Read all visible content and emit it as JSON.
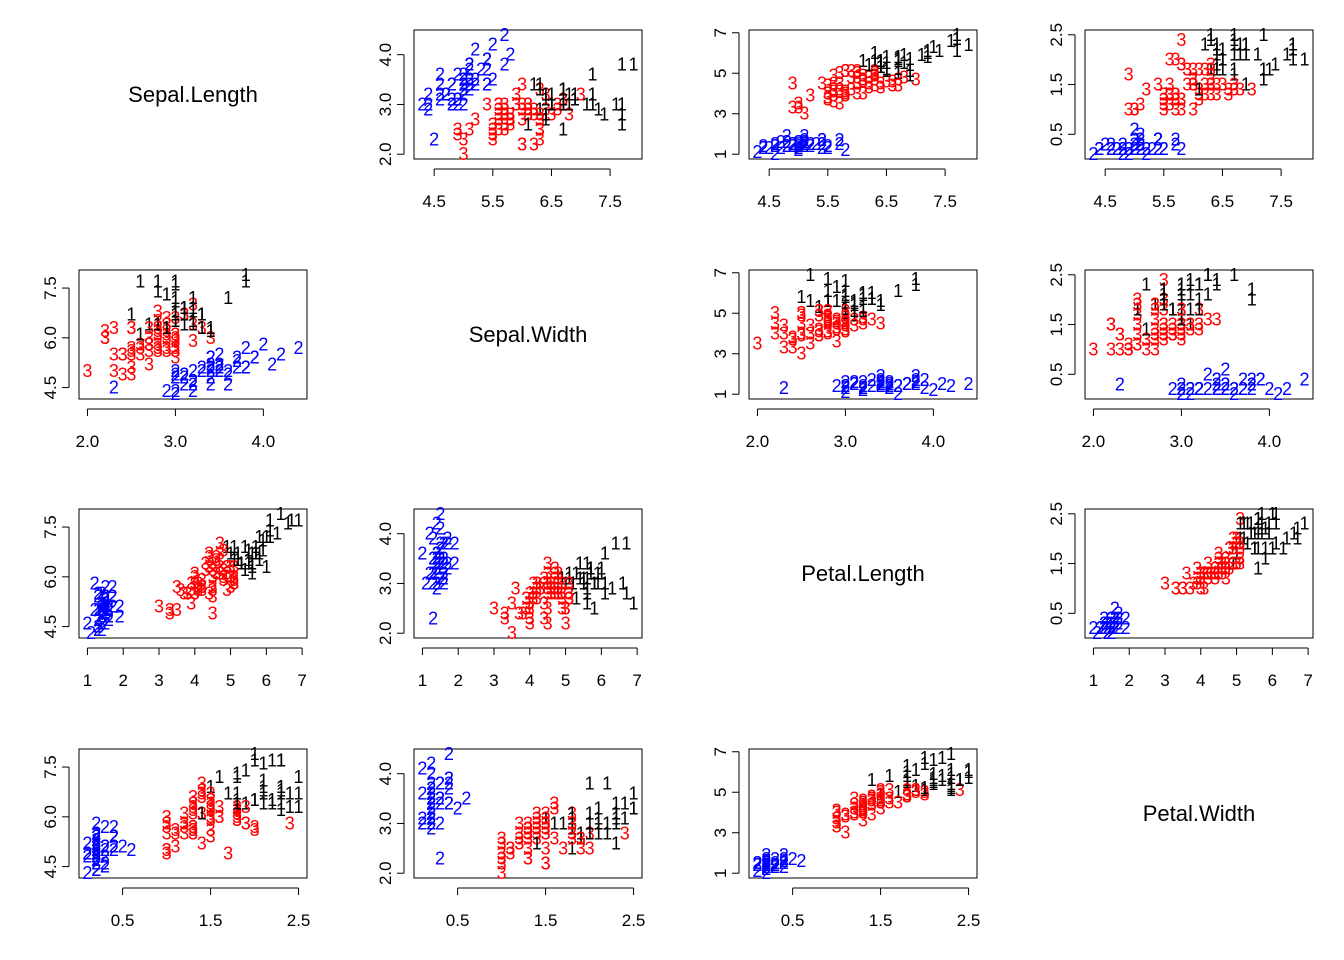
{
  "chart_data": {
    "type": "pairs",
    "variables": [
      "Sepal.Length",
      "Sepal.Width",
      "Petal.Length",
      "Petal.Width"
    ],
    "colors": [
      "#000000",
      "#0000ff",
      "#ff0000"
    ],
    "axes": [
      {
        "lim": [
          4.156,
          8.044
        ],
        "xticks": [
          4.5,
          5.5,
          6.5,
          7.5
        ],
        "yticks": [
          4.5,
          {
            "value": 6,
            "label": "6.0"
          },
          7.5
        ]
      },
      {
        "lim": [
          1.904,
          4.496
        ],
        "xticks": [
          {
            "value": 2,
            "label": "2.0"
          },
          {
            "value": 3,
            "label": "3.0"
          },
          {
            "value": 4,
            "label": "4.0"
          }
        ],
        "yticks": [
          {
            "value": 2,
            "label": "2.0"
          },
          {
            "value": 3,
            "label": "3.0"
          },
          {
            "value": 4,
            "label": "4.0"
          }
        ]
      },
      {
        "lim": [
          0.764,
          7.136
        ],
        "xticks": [
          1,
          2,
          3,
          4,
          5,
          6,
          7
        ],
        "yticks": [
          1,
          3,
          5,
          7
        ]
      },
      {
        "lim": [
          0.004,
          2.596
        ],
        "xticks": [
          0.5,
          1.5,
          2.5
        ],
        "yticks": [
          0.5,
          1.5,
          2.5
        ]
      }
    ],
    "data": [
      [
        5.1,
        4.9,
        4.7,
        4.6,
        5.0,
        5.4,
        4.6,
        5.0,
        4.4,
        4.9,
        5.4,
        4.8,
        4.8,
        4.3,
        5.8,
        5.7,
        5.4,
        5.1,
        5.7,
        5.1,
        5.4,
        5.1,
        4.6,
        5.1,
        4.8,
        5.0,
        5.0,
        5.2,
        5.2,
        4.7,
        4.8,
        5.4,
        5.2,
        5.5,
        4.9,
        5.0,
        5.5,
        4.9,
        4.4,
        5.1,
        5.0,
        4.5,
        4.4,
        5.0,
        5.1,
        4.8,
        5.1,
        4.6,
        5.3,
        5.0,
        7.0,
        6.4,
        6.9,
        5.5,
        6.5,
        5.7,
        6.3,
        4.9,
        6.6,
        5.2,
        5.0,
        5.9,
        6.0,
        6.1,
        5.6,
        6.7,
        5.6,
        5.8,
        6.2,
        5.6,
        5.9,
        6.1,
        6.3,
        6.1,
        6.4,
        6.6,
        6.8,
        6.7,
        6.0,
        5.7,
        5.5,
        5.5,
        5.8,
        6.0,
        5.4,
        6.0,
        6.7,
        6.3,
        5.6,
        5.5,
        5.5,
        6.1,
        5.8,
        5.0,
        5.6,
        5.7,
        5.7,
        6.2,
        5.1,
        5.7,
        6.3,
        5.8,
        7.1,
        6.3,
        6.5,
        7.6,
        4.9,
        7.3,
        6.7,
        7.2,
        6.5,
        6.4,
        6.8,
        5.7,
        5.8,
        6.4,
        6.5,
        7.7,
        7.7,
        6.0,
        6.9,
        5.6,
        7.7,
        6.3,
        6.7,
        7.2,
        6.2,
        6.1,
        6.4,
        7.2,
        7.4,
        7.9,
        6.4,
        6.3,
        6.1,
        7.7,
        6.3,
        6.4,
        6.0,
        6.9,
        6.7,
        6.9,
        5.8,
        6.8,
        6.7,
        6.7,
        6.3,
        6.5,
        6.2,
        5.9
      ],
      [
        3.5,
        3.0,
        3.2,
        3.1,
        3.6,
        3.9,
        3.4,
        3.4,
        2.9,
        3.1,
        3.7,
        3.4,
        3.0,
        3.0,
        4.0,
        4.4,
        3.9,
        3.5,
        3.8,
        3.8,
        3.4,
        3.7,
        3.6,
        3.3,
        3.4,
        3.0,
        3.4,
        3.5,
        3.4,
        3.2,
        3.1,
        3.4,
        4.1,
        4.2,
        3.1,
        3.2,
        3.5,
        3.6,
        3.0,
        3.4,
        3.5,
        2.3,
        3.2,
        3.5,
        3.8,
        3.0,
        3.8,
        3.2,
        3.7,
        3.3,
        3.2,
        3.2,
        3.1,
        2.3,
        2.8,
        2.8,
        3.3,
        2.4,
        2.9,
        2.7,
        2.0,
        3.0,
        2.2,
        2.9,
        2.9,
        3.1,
        3.0,
        2.7,
        2.2,
        2.5,
        3.2,
        2.8,
        2.5,
        2.8,
        2.9,
        3.0,
        2.8,
        3.0,
        2.9,
        2.6,
        2.4,
        2.4,
        2.7,
        2.7,
        3.0,
        3.4,
        3.1,
        2.3,
        3.0,
        2.5,
        2.6,
        3.0,
        2.6,
        2.3,
        2.7,
        3.0,
        2.9,
        2.9,
        2.5,
        2.8,
        3.3,
        2.7,
        3.0,
        2.9,
        3.0,
        3.0,
        2.5,
        2.9,
        2.5,
        3.6,
        3.2,
        2.7,
        3.0,
        2.5,
        2.8,
        3.2,
        3.0,
        3.8,
        2.6,
        2.2,
        3.2,
        2.8,
        2.8,
        2.7,
        3.3,
        3.2,
        2.8,
        3.0,
        2.8,
        3.0,
        2.8,
        3.8,
        2.8,
        2.8,
        2.6,
        3.0,
        3.4,
        3.1,
        3.0,
        3.1,
        3.1,
        3.1,
        2.7,
        3.2,
        3.3,
        3.0,
        2.5,
        3.0,
        3.4,
        3.0
      ],
      [
        1.4,
        1.4,
        1.3,
        1.5,
        1.4,
        1.7,
        1.4,
        1.5,
        1.4,
        1.5,
        1.5,
        1.6,
        1.4,
        1.1,
        1.2,
        1.5,
        1.3,
        1.4,
        1.7,
        1.5,
        1.7,
        1.5,
        1.0,
        1.7,
        1.9,
        1.6,
        1.6,
        1.5,
        1.4,
        1.6,
        1.6,
        1.5,
        1.5,
        1.4,
        1.5,
        1.2,
        1.3,
        1.4,
        1.3,
        1.5,
        1.3,
        1.3,
        1.3,
        1.6,
        1.9,
        1.4,
        1.6,
        1.4,
        1.5,
        1.4,
        4.7,
        4.5,
        4.9,
        4.0,
        4.6,
        4.5,
        4.7,
        3.3,
        4.6,
        3.9,
        3.5,
        4.2,
        4.0,
        4.7,
        3.6,
        4.4,
        4.5,
        4.1,
        4.5,
        3.9,
        4.8,
        4.0,
        4.9,
        4.7,
        4.3,
        4.4,
        4.8,
        5.0,
        4.5,
        3.5,
        3.8,
        3.7,
        3.9,
        5.1,
        4.5,
        4.5,
        4.7,
        4.4,
        4.1,
        4.0,
        4.4,
        4.6,
        4.0,
        3.3,
        4.2,
        4.2,
        4.2,
        4.3,
        3.0,
        4.1,
        6.0,
        5.1,
        5.9,
        5.6,
        5.8,
        6.6,
        4.5,
        6.3,
        5.8,
        6.1,
        5.1,
        5.3,
        5.5,
        5.0,
        5.1,
        5.3,
        5.5,
        6.7,
        6.9,
        5.0,
        5.7,
        4.9,
        6.7,
        4.9,
        5.7,
        6.0,
        4.8,
        4.9,
        5.6,
        5.8,
        6.1,
        6.4,
        5.6,
        5.1,
        5.6,
        6.1,
        5.6,
        5.5,
        4.8,
        5.4,
        5.6,
        5.1,
        5.1,
        5.9,
        5.7,
        5.2,
        5.0,
        5.2,
        5.4,
        5.1
      ],
      [
        0.2,
        0.2,
        0.2,
        0.2,
        0.2,
        0.4,
        0.3,
        0.2,
        0.2,
        0.1,
        0.2,
        0.2,
        0.1,
        0.1,
        0.2,
        0.4,
        0.4,
        0.3,
        0.3,
        0.3,
        0.2,
        0.4,
        0.2,
        0.5,
        0.2,
        0.2,
        0.4,
        0.2,
        0.2,
        0.2,
        0.2,
        0.4,
        0.1,
        0.2,
        0.2,
        0.2,
        0.2,
        0.1,
        0.2,
        0.2,
        0.3,
        0.3,
        0.2,
        0.6,
        0.4,
        0.3,
        0.2,
        0.2,
        0.2,
        0.2,
        1.4,
        1.5,
        1.5,
        1.3,
        1.5,
        1.3,
        1.6,
        1.0,
        1.3,
        1.4,
        1.0,
        1.5,
        1.0,
        1.4,
        1.3,
        1.4,
        1.5,
        1.0,
        1.5,
        1.1,
        1.8,
        1.3,
        1.5,
        1.2,
        1.3,
        1.4,
        1.4,
        1.7,
        1.5,
        1.0,
        1.1,
        1.0,
        1.2,
        1.6,
        1.5,
        1.6,
        1.5,
        1.3,
        1.3,
        1.3,
        1.2,
        1.4,
        1.2,
        1.0,
        1.3,
        1.2,
        1.3,
        1.3,
        1.1,
        1.3,
        2.5,
        1.9,
        2.1,
        1.8,
        2.2,
        2.1,
        1.7,
        1.8,
        1.8,
        2.5,
        2.0,
        1.9,
        2.1,
        2.0,
        2.4,
        2.3,
        1.8,
        2.2,
        2.3,
        1.5,
        2.3,
        2.0,
        2.0,
        1.8,
        2.1,
        1.8,
        1.8,
        1.8,
        2.1,
        1.6,
        1.9,
        2.0,
        2.2,
        1.5,
        1.4,
        2.3,
        2.4,
        1.8,
        1.8,
        2.1,
        2.4,
        2.3,
        1.9,
        2.3,
        2.5,
        2.3,
        1.9,
        2.0,
        2.3,
        1.8
      ]
    ],
    "clusters": [
      2,
      2,
      2,
      2,
      2,
      2,
      2,
      2,
      2,
      2,
      2,
      2,
      2,
      2,
      2,
      2,
      2,
      2,
      2,
      2,
      2,
      2,
      2,
      2,
      2,
      2,
      2,
      2,
      2,
      2,
      2,
      2,
      2,
      2,
      2,
      2,
      2,
      2,
      2,
      2,
      2,
      2,
      2,
      2,
      2,
      2,
      2,
      2,
      2,
      2,
      3,
      3,
      1,
      3,
      3,
      3,
      3,
      3,
      3,
      3,
      3,
      3,
      3,
      3,
      3,
      3,
      3,
      3,
      3,
      3,
      3,
      3,
      3,
      3,
      3,
      3,
      3,
      1,
      3,
      3,
      3,
      3,
      3,
      3,
      3,
      3,
      3,
      3,
      3,
      3,
      3,
      3,
      3,
      3,
      3,
      3,
      3,
      3,
      3,
      3,
      1,
      3,
      1,
      1,
      1,
      1,
      3,
      1,
      1,
      1,
      1,
      1,
      1,
      3,
      3,
      1,
      1,
      1,
      1,
      3,
      1,
      3,
      1,
      3,
      1,
      1,
      3,
      3,
      1,
      1,
      1,
      1,
      1,
      3,
      1,
      1,
      1,
      1,
      3,
      1,
      1,
      1,
      3,
      1,
      1,
      1,
      3,
      1,
      1,
      3
    ]
  }
}
